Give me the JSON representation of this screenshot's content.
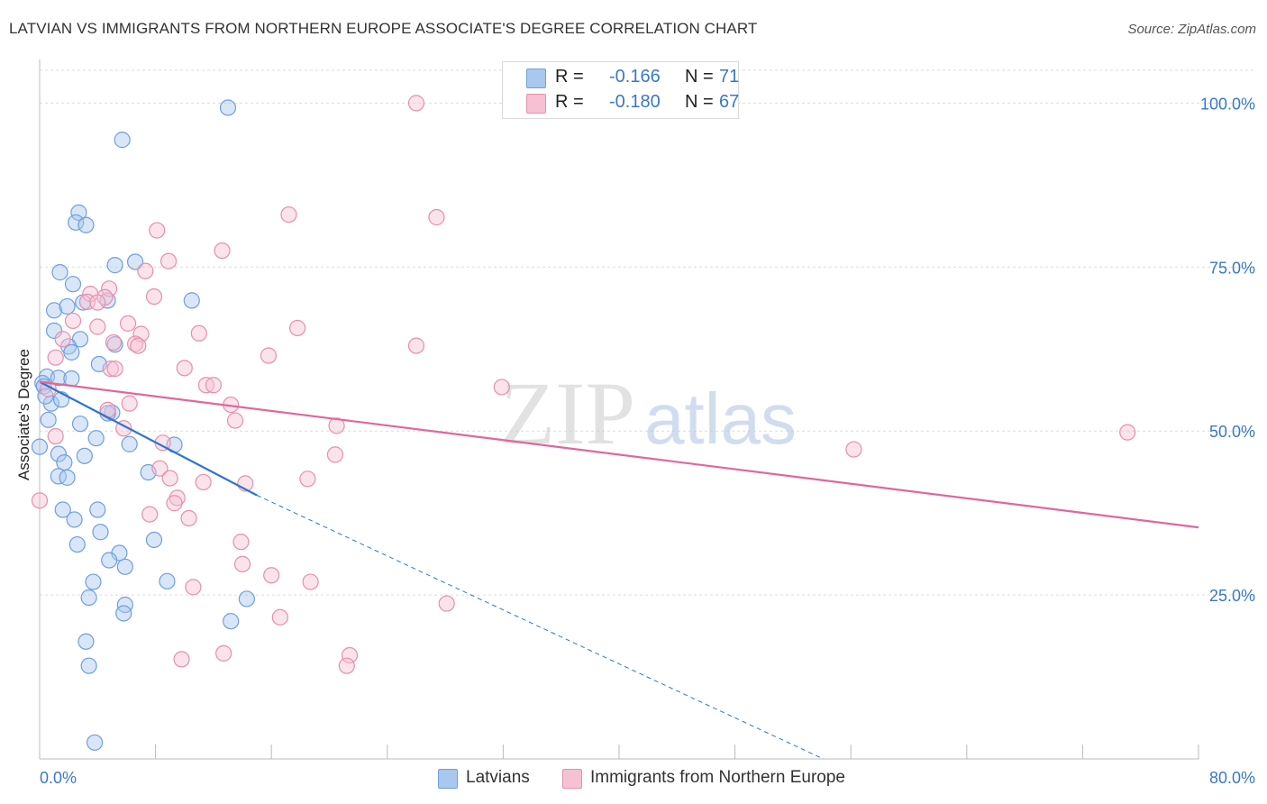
{
  "chart_data": {
    "type": "scatter",
    "title": "LATVIAN VS IMMIGRANTS FROM NORTHERN EUROPE ASSOCIATE'S DEGREE CORRELATION CHART",
    "source": "Source: ZipAtlas.com",
    "ylabel": "Associate's Degree",
    "xlabel": "",
    "xlim": [
      0,
      80
    ],
    "ylim": [
      0,
      105
    ],
    "x_tick_labels": {
      "left": "0.0%",
      "right": "80.0%"
    },
    "y_ticks": [
      {
        "value": 100,
        "label": "100.0%"
      },
      {
        "value": 75,
        "label": "75.0%"
      },
      {
        "value": 50,
        "label": "50.0%"
      },
      {
        "value": 25,
        "label": "25.0%"
      }
    ],
    "watermark": {
      "zip": "ZIP",
      "atlas": "atlas"
    },
    "stats": [
      {
        "r_label": "R =",
        "r": "-0.166",
        "n_label": "N =",
        "n": "71"
      },
      {
        "r_label": "R =",
        "r": "-0.180",
        "n_label": "N =",
        "n": "67"
      }
    ],
    "series": [
      {
        "name": "Latvians",
        "color": "#6f9fdc",
        "fill": "#a9c8ef",
        "line_color": "#2e74cf",
        "trend": {
          "x0": 0,
          "y0": 57.5,
          "x1": 15,
          "y1": 40.2,
          "dash_to_x": 54.1,
          "dash_to_y": 0
        },
        "points": [
          [
            13.0,
            99.3
          ],
          [
            5.7,
            94.4
          ],
          [
            2.7,
            83.3
          ],
          [
            2.5,
            81.8
          ],
          [
            3.2,
            81.4
          ],
          [
            1.4,
            74.2
          ],
          [
            6.6,
            75.8
          ],
          [
            5.2,
            75.3
          ],
          [
            2.3,
            72.4
          ],
          [
            1.0,
            68.4
          ],
          [
            3.0,
            69.6
          ],
          [
            1.9,
            69.0
          ],
          [
            4.7,
            69.9
          ],
          [
            10.5,
            69.9
          ],
          [
            1.0,
            65.3
          ],
          [
            2.8,
            64.0
          ],
          [
            2.0,
            62.9
          ],
          [
            2.2,
            62.0
          ],
          [
            4.1,
            60.2
          ],
          [
            5.2,
            63.2
          ],
          [
            0.5,
            58.3
          ],
          [
            0.2,
            57.3
          ],
          [
            1.3,
            58.1
          ],
          [
            2.2,
            58.0
          ],
          [
            0.3,
            56.8
          ],
          [
            0.8,
            54.2
          ],
          [
            0.4,
            55.3
          ],
          [
            1.5,
            54.8
          ],
          [
            0.6,
            51.7
          ],
          [
            5.0,
            52.8
          ],
          [
            2.8,
            51.1
          ],
          [
            4.7,
            52.7
          ],
          [
            0.0,
            47.6
          ],
          [
            3.9,
            48.9
          ],
          [
            6.2,
            48.0
          ],
          [
            9.3,
            47.9
          ],
          [
            1.3,
            46.5
          ],
          [
            3.1,
            46.2
          ],
          [
            1.7,
            45.2
          ],
          [
            1.3,
            43.1
          ],
          [
            1.9,
            42.9
          ],
          [
            7.5,
            43.7
          ],
          [
            1.6,
            38.0
          ],
          [
            4.0,
            38.0
          ],
          [
            2.4,
            36.5
          ],
          [
            4.2,
            34.6
          ],
          [
            7.9,
            33.4
          ],
          [
            2.6,
            32.7
          ],
          [
            5.5,
            31.4
          ],
          [
            4.8,
            30.3
          ],
          [
            5.9,
            29.3
          ],
          [
            8.8,
            27.1
          ],
          [
            3.7,
            27.0
          ],
          [
            3.4,
            24.6
          ],
          [
            5.9,
            23.5
          ],
          [
            14.3,
            24.4
          ],
          [
            5.8,
            22.2
          ],
          [
            13.2,
            21.0
          ],
          [
            3.2,
            17.9
          ],
          [
            3.4,
            14.2
          ],
          [
            3.8,
            2.5
          ]
        ]
      },
      {
        "name": "Immigrants from Northern Europe",
        "color": "#e68fad",
        "fill": "#f6c2d3",
        "line_color": "#e0679a",
        "trend": {
          "x0": 0,
          "y0": 57.5,
          "x1": 80,
          "y1": 35.3
        },
        "points": [
          [
            26.0,
            100.0
          ],
          [
            17.2,
            83.0
          ],
          [
            27.4,
            82.6
          ],
          [
            8.1,
            80.6
          ],
          [
            12.6,
            77.5
          ],
          [
            8.9,
            75.9
          ],
          [
            7.3,
            74.4
          ],
          [
            4.8,
            71.7
          ],
          [
            3.5,
            70.9
          ],
          [
            4.5,
            70.4
          ],
          [
            7.9,
            70.5
          ],
          [
            3.3,
            69.7
          ],
          [
            4.0,
            69.6
          ],
          [
            2.3,
            66.8
          ],
          [
            4.0,
            65.9
          ],
          [
            6.1,
            66.4
          ],
          [
            1.6,
            64.0
          ],
          [
            7.0,
            64.8
          ],
          [
            11.0,
            64.9
          ],
          [
            17.8,
            65.7
          ],
          [
            5.1,
            63.5
          ],
          [
            6.6,
            63.3
          ],
          [
            6.8,
            63.0
          ],
          [
            26.0,
            63.0
          ],
          [
            15.8,
            61.5
          ],
          [
            1.1,
            61.2
          ],
          [
            4.9,
            59.5
          ],
          [
            5.2,
            59.5
          ],
          [
            10.0,
            59.6
          ],
          [
            11.5,
            57.0
          ],
          [
            12.0,
            57.0
          ],
          [
            31.9,
            56.7
          ],
          [
            0.6,
            56.4
          ],
          [
            6.2,
            54.2
          ],
          [
            13.2,
            54.0
          ],
          [
            4.7,
            53.2
          ],
          [
            13.5,
            51.6
          ],
          [
            20.5,
            50.8
          ],
          [
            5.8,
            50.4
          ],
          [
            75.1,
            49.8
          ],
          [
            1.1,
            49.2
          ],
          [
            8.5,
            48.2
          ],
          [
            56.2,
            47.2
          ],
          [
            20.4,
            46.4
          ],
          [
            8.3,
            44.3
          ],
          [
            9.0,
            42.8
          ],
          [
            18.5,
            42.7
          ],
          [
            11.3,
            42.2
          ],
          [
            14.2,
            42.0
          ],
          [
            9.5,
            39.8
          ],
          [
            0.0,
            39.4
          ],
          [
            9.3,
            39.0
          ],
          [
            7.6,
            37.3
          ],
          [
            10.3,
            36.7
          ],
          [
            13.9,
            33.1
          ],
          [
            14.0,
            29.7
          ],
          [
            16.0,
            28.0
          ],
          [
            18.7,
            27.0
          ],
          [
            10.6,
            26.2
          ],
          [
            28.1,
            23.7
          ],
          [
            16.6,
            21.6
          ],
          [
            12.7,
            16.1
          ],
          [
            21.4,
            15.8
          ],
          [
            9.8,
            15.2
          ],
          [
            21.2,
            14.2
          ]
        ]
      }
    ]
  }
}
